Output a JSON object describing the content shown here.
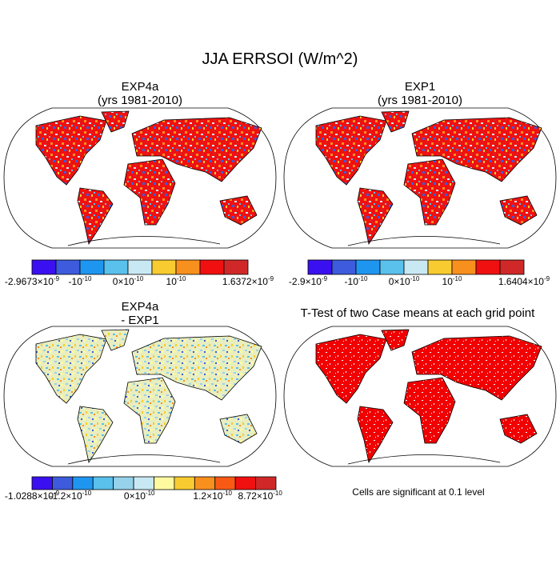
{
  "title": "JJA ERRSOI (W/m^2)",
  "panels": [
    {
      "title": [
        "EXP4a",
        "(yrs 1981-2010)"
      ]
    },
    {
      "title": [
        "EXP1",
        "(yrs 1981-2010)"
      ]
    },
    {
      "title": [
        "EXP4a",
        "- EXP1"
      ]
    },
    {
      "title": [
        "T-Test of two Case means at each grid point"
      ],
      "note": "Cells are significant at 0.1 level"
    }
  ],
  "colorbars": [
    {
      "colors": [
        "#3b10f0",
        "#3d5bdc",
        "#1e96f0",
        "#5ac0ec",
        "#c8e8f4",
        "#f8cc30",
        "#f8901e",
        "#f01010",
        "#d02828"
      ],
      "labels": [
        {
          "base": "-2.9673×10",
          "exp": "-9"
        },
        {
          "base": "-10",
          "exp": "-10"
        },
        {
          "base": "0×10",
          "exp": "-10"
        },
        {
          "base": "10",
          "exp": "-10"
        },
        {
          "base": "1.6372×10",
          "exp": "-9"
        }
      ]
    },
    {
      "colors": [
        "#3b10f0",
        "#3d5bdc",
        "#1e96f0",
        "#5ac0ec",
        "#c8e8f4",
        "#f8cc30",
        "#f8901e",
        "#f01010",
        "#d02828"
      ],
      "labels": [
        {
          "base": "-2.9×10",
          "exp": "-9"
        },
        {
          "base": "-10",
          "exp": "-10"
        },
        {
          "base": "0×10",
          "exp": "-10"
        },
        {
          "base": "10",
          "exp": "-10"
        },
        {
          "base": "1.6404×10",
          "exp": "-9"
        }
      ]
    },
    {
      "colors": [
        "#3b10f0",
        "#3d5bdc",
        "#1e96f0",
        "#5ac0ec",
        "#96d2ea",
        "#c8e8f4",
        "#fffaa0",
        "#f8cc30",
        "#f8901e",
        "#f85a14",
        "#f01010",
        "#d02828"
      ],
      "labels": [
        {
          "base": "-1.0288×10",
          "exp": "-9"
        },
        {
          "base": "-1.2×10",
          "exp": "-10"
        },
        {
          "base": "0×10",
          "exp": "-10"
        },
        {
          "base": "1.2×10",
          "exp": "-10"
        },
        {
          "base": "8.72×10",
          "exp": "-10"
        }
      ]
    }
  ]
}
